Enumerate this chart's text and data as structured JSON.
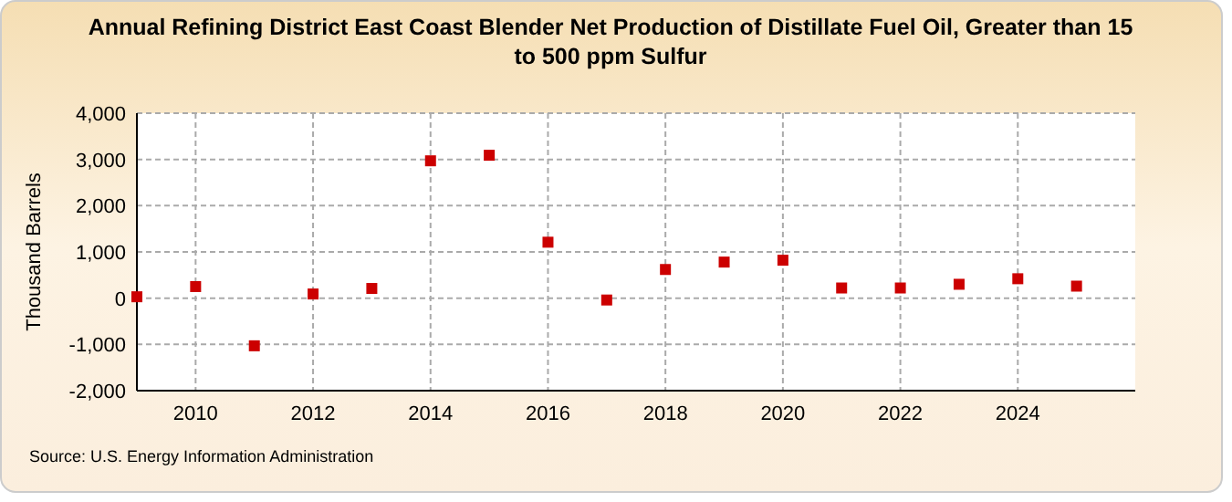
{
  "chart_data": {
    "type": "scatter",
    "title": "Annual Refining District East Coast Blender Net Production of Distillate Fuel Oil, Greater than 15 to 500 ppm Sulfur",
    "ylabel": "Thousand Barrels",
    "annotations": [
      "Source: U.S. Energy Information Administration"
    ],
    "x": [
      2009,
      2010,
      2011,
      2012,
      2013,
      2014,
      2015,
      2016,
      2017,
      2018,
      2019,
      2020,
      2021,
      2022,
      2023,
      2024,
      2025
    ],
    "series": [
      {
        "color": "#cc0000",
        "values": [
          30,
          250,
          -1030,
          90,
          210,
          2970,
          3090,
          1210,
          -40,
          620,
          780,
          820,
          220,
          220,
          300,
          420,
          260
        ]
      }
    ],
    "xlim": [
      2009,
      2026
    ],
    "xticks": [
      2010,
      2012,
      2014,
      2016,
      2018,
      2020,
      2022,
      2024
    ],
    "ylim": [
      -2000,
      4000
    ],
    "yticks": [
      {
        "value": -2000,
        "label": "-2,000"
      },
      {
        "value": -1000,
        "label": "-1,000"
      },
      0,
      {
        "value": 1000,
        "label": "1,000"
      },
      {
        "value": 2000,
        "label": "2,000"
      },
      {
        "value": 3000,
        "label": "3,000"
      },
      {
        "value": 4000,
        "label": "4,000"
      }
    ],
    "grid": true,
    "marker": "square"
  }
}
